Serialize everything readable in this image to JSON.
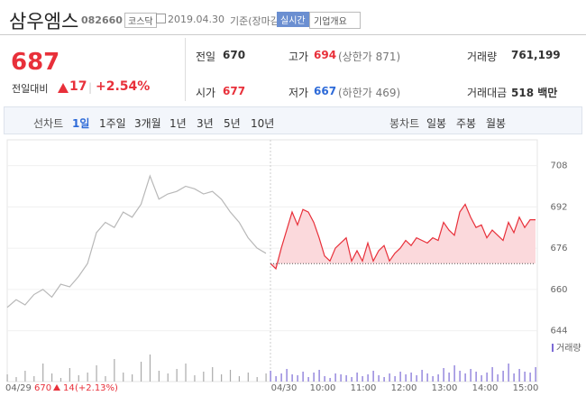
{
  "header": {
    "name": "삼우엠스",
    "code": "082660",
    "market": "코스닥",
    "date": "2019.04.30",
    "basis": "기준(장마감)",
    "realtime": "실시간",
    "company_info": "기업개요"
  },
  "quote": {
    "price": "687",
    "change_label": "전일대비",
    "change": "17",
    "rate": "+2.54%"
  },
  "stats": {
    "prev": {
      "label": "전일",
      "value": "670"
    },
    "high": {
      "label": "고가",
      "value": "694",
      "limit": "(상한가 871)"
    },
    "volume": {
      "label": "거래량",
      "value": "761,199"
    },
    "open": {
      "label": "시가",
      "value": "677"
    },
    "low": {
      "label": "저가",
      "value": "667",
      "limit": "(하한가 469)"
    },
    "amount": {
      "label": "거래대금",
      "value": "518 백만"
    }
  },
  "tabs": {
    "line_label": "선차트",
    "line_periods": [
      "1일",
      "1주일",
      "3개월",
      "1년",
      "3년",
      "5년",
      "10년"
    ],
    "candle_label": "봉차트",
    "candle_periods": [
      "일봉",
      "주봉",
      "월봉"
    ]
  },
  "chart": {
    "ylim": [
      640,
      718
    ],
    "yticks": [
      708,
      692,
      676,
      660,
      644
    ],
    "baseline": 670,
    "series": [
      {
        "name": "04/29",
        "color": "#b8b8b8",
        "values": [
          653,
          656,
          654,
          658,
          660,
          657,
          662,
          661,
          665,
          670,
          682,
          686,
          684,
          690,
          688,
          693,
          704,
          695,
          697,
          698,
          700,
          699,
          697,
          698,
          695,
          690,
          686,
          680,
          676,
          674
        ]
      },
      {
        "name": "04/30",
        "color": "#e8303a",
        "values": [
          670,
          668,
          676,
          683,
          690,
          685,
          691,
          690,
          686,
          680,
          673,
          671,
          676,
          678,
          680,
          671,
          675,
          671,
          678,
          671,
          675,
          677,
          671,
          674,
          676,
          679,
          677,
          680,
          679,
          678,
          680,
          679,
          686,
          683,
          681,
          690,
          693,
          688,
          684,
          685,
          680,
          683,
          681,
          679,
          686,
          682,
          688,
          684,
          687,
          687
        ]
      }
    ],
    "volume_label": "거래량",
    "volume": [
      [
        8,
        5,
        12,
        6,
        20,
        9,
        4,
        15,
        7,
        10,
        18,
        6,
        25,
        10,
        8,
        22,
        30,
        12,
        9,
        14,
        20,
        7,
        11,
        16,
        8,
        13,
        6,
        10,
        5,
        9
      ],
      [
        12,
        6,
        9,
        14,
        8,
        7,
        11,
        5,
        10,
        13,
        6,
        4,
        9,
        8,
        7,
        5,
        10,
        6,
        8,
        12,
        7,
        5,
        9,
        6,
        11,
        8,
        10,
        7,
        13,
        9,
        6,
        8,
        15,
        10,
        18,
        12,
        9,
        14,
        11,
        7,
        10,
        16,
        8,
        12,
        20,
        9,
        14,
        11,
        10,
        16
      ]
    ],
    "xticks": [
      "04/30",
      "10:00",
      "11:00",
      "12:00",
      "13:00",
      "14:00",
      "15:00"
    ],
    "prev_day": {
      "date": "04/29",
      "price": "670",
      "change": "14",
      "rate": "(+2.13%)"
    }
  }
}
